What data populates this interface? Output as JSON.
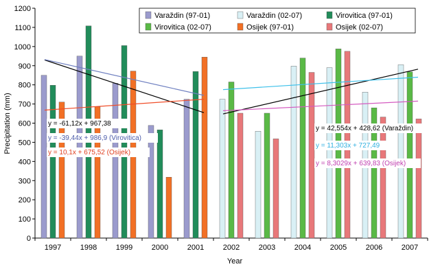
{
  "chart_data": {
    "type": "bar",
    "xlabel": "Year",
    "ylabel": "Precipitation (mm)",
    "ylim": [
      0,
      1200
    ],
    "yticks": [
      0,
      100,
      200,
      300,
      400,
      500,
      600,
      700,
      800,
      900,
      1000,
      1100,
      1200
    ],
    "categories": [
      "1997",
      "1998",
      "1999",
      "2000",
      "2001",
      "2002",
      "2003",
      "2004",
      "2005",
      "2006",
      "2007"
    ],
    "grid": false,
    "legend_position": "top-right",
    "series": [
      {
        "name": "Varaždin (97-01)",
        "color": "#9b9bcd",
        "values": [
          850,
          950,
          808,
          588,
          725,
          null,
          null,
          null,
          null,
          null,
          null
        ]
      },
      {
        "name": "Varaždin (02-07)",
        "color": "#d9f0f5",
        "values": [
          null,
          null,
          null,
          null,
          null,
          725,
          558,
          898,
          890,
          762,
          905
        ]
      },
      {
        "name": "Virovitica (97-01)",
        "color": "#218c5a",
        "values": [
          798,
          1108,
          1005,
          565,
          870,
          null,
          null,
          null,
          null,
          null,
          null
        ]
      },
      {
        "name": "Virovitica (02-07)",
        "color": "#5ab946",
        "values": [
          null,
          null,
          null,
          null,
          null,
          815,
          652,
          940,
          988,
          680,
          868
        ]
      },
      {
        "name": "Osijek (97-01)",
        "color": "#f27025",
        "values": [
          710,
          685,
          872,
          318,
          945,
          null,
          null,
          null,
          null,
          null,
          null
        ]
      },
      {
        "name": "Osijek (02-07)",
        "color": "#e8787a",
        "values": [
          null,
          null,
          null,
          null,
          null,
          652,
          518,
          865,
          975,
          632,
          622
        ]
      }
    ],
    "trendlines": [
      {
        "equation": "y = -61,12x + 967,38",
        "color": "#000000",
        "label_color": "#000000",
        "from": "1997",
        "to": "2001",
        "y_start": 930,
        "y_end": 655
      },
      {
        "equation": "y = -39,44x + 986,9 (Virovitica)",
        "color": "#6e7fc0",
        "label_color": "#4a5aa8",
        "from": "1997",
        "to": "2001",
        "y_start": 932,
        "y_end": 745
      },
      {
        "equation": "y = 10,1x + 675,52 (Osijek)",
        "color": "#f04d28",
        "label_color": "#e04020",
        "from": "1997",
        "to": "2001",
        "y_start": 668,
        "y_end": 725
      },
      {
        "equation": "y = 42,554x + 428,62 (Varaždin)",
        "color": "#000000",
        "label_color": "#000000",
        "from": "2002",
        "to": "2007",
        "y_start": 648,
        "y_end": 882
      },
      {
        "equation": "y = 11,303x + 727,49",
        "color": "#3cc0ea",
        "label_color": "#30b0e0",
        "from": "2002",
        "to": "2007",
        "y_start": 775,
        "y_end": 840
      },
      {
        "equation": "y = 8,3029x + 639,83 (Osijek)",
        "color": "#d45ac0",
        "label_color": "#c040b0",
        "from": "2002",
        "to": "2007",
        "y_start": 665,
        "y_end": 715
      }
    ]
  }
}
